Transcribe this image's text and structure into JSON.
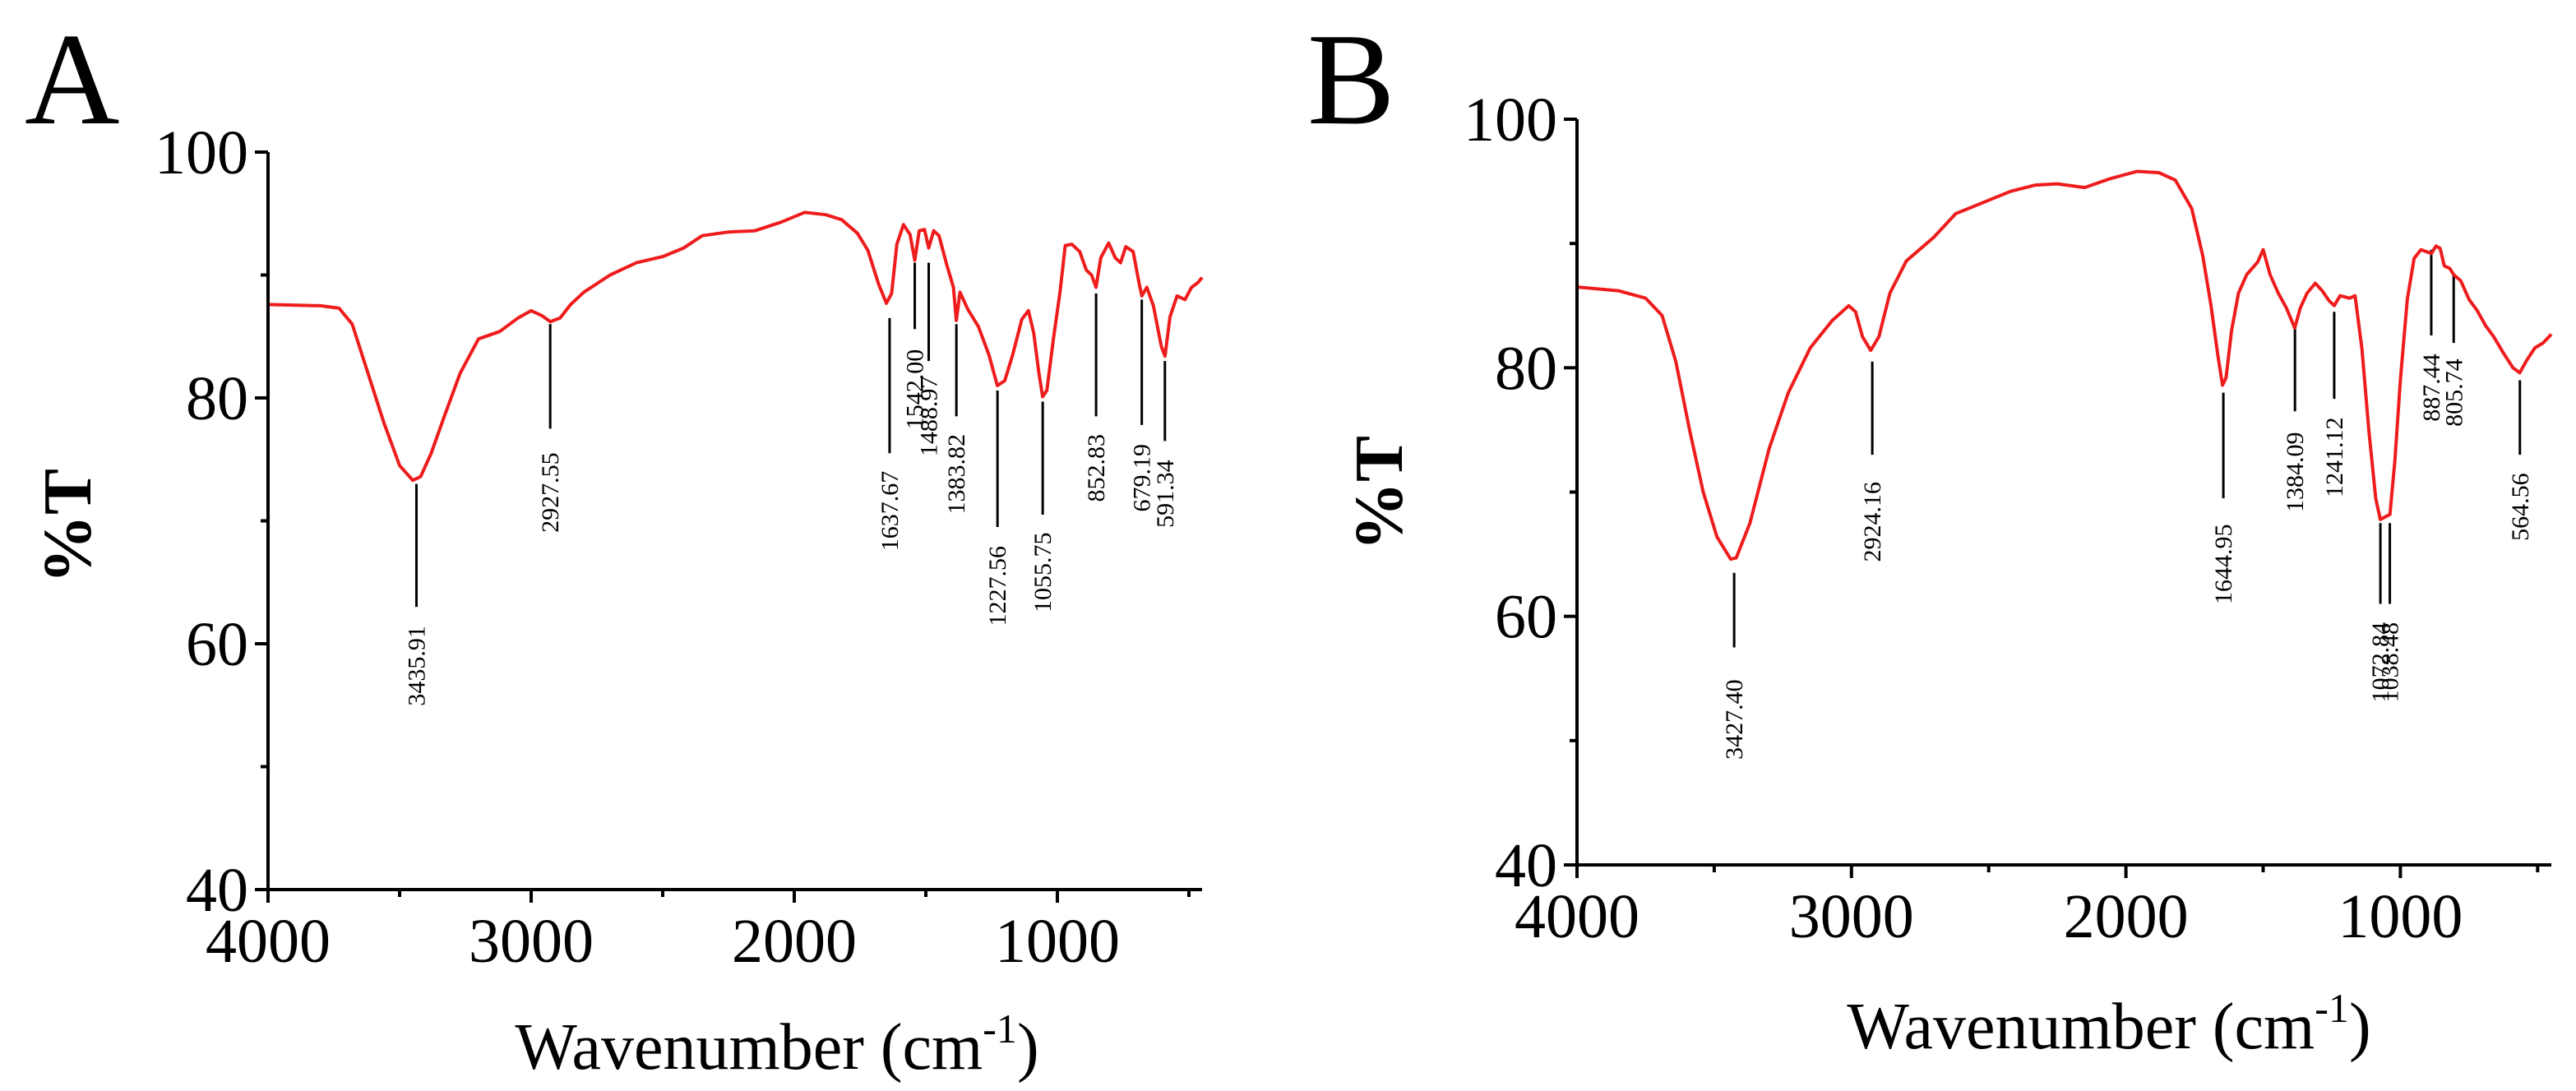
{
  "colors": {
    "spectrum": "#ee1c1c",
    "axis": "#000000"
  },
  "chart_data": [
    {
      "type": "line",
      "panel_letter": "A",
      "xlabel": "Wavenumber (cm",
      "xlabel_superscript": "-1",
      "xlabel_close": ")",
      "ylabel": "%T",
      "xlim": [
        4000,
        450
      ],
      "ylim": [
        40,
        100
      ],
      "x_ticks": [
        4000,
        3000,
        2000,
        1000
      ],
      "x_tick_labels": [
        "4000",
        "3000",
        "2000",
        "1000"
      ],
      "y_ticks": [
        40,
        60,
        80,
        100
      ],
      "y_tick_labels": [
        "40",
        "60",
        "80",
        "100"
      ],
      "series": [
        {
          "name": "A",
          "points": [
            [
              4000,
              87.6
            ],
            [
              3800,
              87.5
            ],
            [
              3730,
              87.3
            ],
            [
              3680,
              86.0
            ],
            [
              3620,
              82.0
            ],
            [
              3560,
              78.0
            ],
            [
              3500,
              74.5
            ],
            [
              3450,
              73.3
            ],
            [
              3420,
              73.6
            ],
            [
              3380,
              75.5
            ],
            [
              3330,
              78.5
            ],
            [
              3270,
              82.0
            ],
            [
              3200,
              84.8
            ],
            [
              3120,
              85.4
            ],
            [
              3050,
              86.5
            ],
            [
              3000,
              87.1
            ],
            [
              2960,
              86.7
            ],
            [
              2927,
              86.2
            ],
            [
              2890,
              86.5
            ],
            [
              2850,
              87.6
            ],
            [
              2800,
              88.6
            ],
            [
              2700,
              90.0
            ],
            [
              2600,
              91.0
            ],
            [
              2500,
              91.5
            ],
            [
              2420,
              92.2
            ],
            [
              2350,
              93.2
            ],
            [
              2250,
              93.5
            ],
            [
              2150,
              93.6
            ],
            [
              2050,
              94.3
            ],
            [
              1960,
              95.1
            ],
            [
              1880,
              94.9
            ],
            [
              1820,
              94.5
            ],
            [
              1760,
              93.4
            ],
            [
              1720,
              92.0
            ],
            [
              1680,
              89.3
            ],
            [
              1650,
              87.7
            ],
            [
              1630,
              88.5
            ],
            [
              1610,
              92.5
            ],
            [
              1585,
              94.1
            ],
            [
              1560,
              93.3
            ],
            [
              1542,
              91.2
            ],
            [
              1525,
              93.6
            ],
            [
              1505,
              93.7
            ],
            [
              1489,
              92.2
            ],
            [
              1470,
              93.6
            ],
            [
              1450,
              93.2
            ],
            [
              1420,
              90.8
            ],
            [
              1395,
              89.0
            ],
            [
              1384,
              86.3
            ],
            [
              1370,
              88.6
            ],
            [
              1340,
              87.2
            ],
            [
              1300,
              85.8
            ],
            [
              1260,
              83.5
            ],
            [
              1228,
              81.0
            ],
            [
              1200,
              81.4
            ],
            [
              1170,
              83.5
            ],
            [
              1135,
              86.4
            ],
            [
              1110,
              87.1
            ],
            [
              1090,
              85.3
            ],
            [
              1070,
              82.0
            ],
            [
              1056,
              80.1
            ],
            [
              1040,
              80.6
            ],
            [
              1015,
              84.8
            ],
            [
              990,
              88.6
            ],
            [
              970,
              92.4
            ],
            [
              945,
              92.5
            ],
            [
              915,
              91.9
            ],
            [
              890,
              90.4
            ],
            [
              870,
              90.0
            ],
            [
              853,
              89.0
            ],
            [
              835,
              91.4
            ],
            [
              805,
              92.6
            ],
            [
              780,
              91.4
            ],
            [
              760,
              91.0
            ],
            [
              740,
              92.3
            ],
            [
              712,
              91.9
            ],
            [
              690,
              89.4
            ],
            [
              679,
              88.3
            ],
            [
              660,
              89.0
            ],
            [
              635,
              87.5
            ],
            [
              605,
              84.2
            ],
            [
              591,
              83.4
            ],
            [
              572,
              86.6
            ],
            [
              545,
              88.3
            ],
            [
              515,
              88.0
            ],
            [
              490,
              89.0
            ],
            [
              465,
              89.4
            ],
            [
              450,
              89.8
            ]
          ]
        }
      ],
      "peaks": [
        {
          "x": 3435.91,
          "label": "3435.91",
          "y_top": 73,
          "y_bottom": 63,
          "label_y": 58.2
        },
        {
          "x": 2927.55,
          "label": "2927.55",
          "y_top": 86,
          "y_bottom": 77.5,
          "label_y": 72.3
        },
        {
          "x": 1637.67,
          "label": "1637.67",
          "y_top": 86.5,
          "y_bottom": 75.5,
          "label_y": 70.8
        },
        {
          "x": 1542.0,
          "label": "1542.00",
          "y_top": 91,
          "y_bottom": 85.6,
          "label_y": 80.7
        },
        {
          "x": 1488.97,
          "label": "1488.97",
          "y_top": 91,
          "y_bottom": 83,
          "label_y": 78.5
        },
        {
          "x": 1383.82,
          "label": "1383.82",
          "y_top": 86,
          "y_bottom": 78.5,
          "label_y": 73.8
        },
        {
          "x": 1227.56,
          "label": "1227.56",
          "y_top": 80.6,
          "y_bottom": 69.5,
          "label_y": 64.7
        },
        {
          "x": 1055.75,
          "label": "1055.75",
          "y_top": 79.7,
          "y_bottom": 70.5,
          "label_y": 65.8
        },
        {
          "x": 852.83,
          "label": "852.83",
          "y_top": 88.5,
          "y_bottom": 78.5,
          "label_y": 74.3
        },
        {
          "x": 679.19,
          "label": "679.19",
          "y_top": 88,
          "y_bottom": 77.8,
          "label_y": 73.5
        },
        {
          "x": 591.34,
          "label": "591.34",
          "y_top": 83,
          "y_bottom": 76.5,
          "label_y": 72.2
        }
      ]
    },
    {
      "type": "line",
      "panel_letter": "B",
      "xlabel": "Wavenumber (cm",
      "xlabel_superscript": "-1",
      "xlabel_close": ")",
      "ylabel": "%T",
      "xlim": [
        4000,
        450
      ],
      "ylim": [
        40,
        100
      ],
      "x_ticks": [
        4000,
        3000,
        2000,
        1000
      ],
      "x_tick_labels": [
        "4000",
        "3000",
        "2000",
        "1000"
      ],
      "y_ticks": [
        40,
        60,
        80,
        100
      ],
      "y_tick_labels": [
        "40",
        "60",
        "80",
        "100"
      ],
      "series": [
        {
          "name": "B",
          "points": [
            [
              4000,
              86.5
            ],
            [
              3850,
              86.2
            ],
            [
              3750,
              85.6
            ],
            [
              3690,
              84.2
            ],
            [
              3640,
              80.5
            ],
            [
              3590,
              75.0
            ],
            [
              3540,
              70.0
            ],
            [
              3490,
              66.4
            ],
            [
              3440,
              64.6
            ],
            [
              3420,
              64.7
            ],
            [
              3370,
              67.5
            ],
            [
              3300,
              73.5
            ],
            [
              3230,
              78.0
            ],
            [
              3150,
              81.6
            ],
            [
              3070,
              83.8
            ],
            [
              3010,
              85.0
            ],
            [
              2985,
              84.5
            ],
            [
              2960,
              82.5
            ],
            [
              2930,
              81.4
            ],
            [
              2900,
              82.5
            ],
            [
              2860,
              86.0
            ],
            [
              2800,
              88.6
            ],
            [
              2700,
              90.5
            ],
            [
              2620,
              92.4
            ],
            [
              2520,
              93.3
            ],
            [
              2420,
              94.2
            ],
            [
              2330,
              94.7
            ],
            [
              2250,
              94.8
            ],
            [
              2150,
              94.5
            ],
            [
              2060,
              95.2
            ],
            [
              1960,
              95.8
            ],
            [
              1880,
              95.7
            ],
            [
              1820,
              95.1
            ],
            [
              1760,
              92.8
            ],
            [
              1720,
              89.0
            ],
            [
              1690,
              85.0
            ],
            [
              1665,
              81.0
            ],
            [
              1648,
              78.6
            ],
            [
              1635,
              79.2
            ],
            [
              1615,
              83.0
            ],
            [
              1590,
              86.0
            ],
            [
              1560,
              87.5
            ],
            [
              1520,
              88.5
            ],
            [
              1500,
              89.5
            ],
            [
              1475,
              87.5
            ],
            [
              1445,
              86.0
            ],
            [
              1415,
              84.8
            ],
            [
              1385,
              83.2
            ],
            [
              1365,
              84.8
            ],
            [
              1340,
              86.0
            ],
            [
              1310,
              86.8
            ],
            [
              1285,
              86.2
            ],
            [
              1260,
              85.4
            ],
            [
              1241,
              85.0
            ],
            [
              1220,
              85.8
            ],
            [
              1185,
              85.6
            ],
            [
              1165,
              85.8
            ],
            [
              1140,
              81.5
            ],
            [
              1115,
              75.0
            ],
            [
              1090,
              69.5
            ],
            [
              1073,
              67.8
            ],
            [
              1055,
              68.0
            ],
            [
              1038,
              68.2
            ],
            [
              1020,
              72.5
            ],
            [
              1000,
              79.0
            ],
            [
              975,
              85.5
            ],
            [
              950,
              88.8
            ],
            [
              925,
              89.5
            ],
            [
              900,
              89.3
            ],
            [
              887,
              89.2
            ],
            [
              870,
              89.8
            ],
            [
              855,
              89.6
            ],
            [
              840,
              88.2
            ],
            [
              820,
              88.0
            ],
            [
              806,
              87.5
            ],
            [
              780,
              87.0
            ],
            [
              750,
              85.5
            ],
            [
              720,
              84.6
            ],
            [
              690,
              83.4
            ],
            [
              660,
              82.5
            ],
            [
              625,
              81.2
            ],
            [
              590,
              80.0
            ],
            [
              565,
              79.6
            ],
            [
              540,
              80.6
            ],
            [
              510,
              81.6
            ],
            [
              480,
              82.0
            ],
            [
              450,
              82.7
            ]
          ]
        }
      ],
      "peaks": [
        {
          "x": 3427.4,
          "label": "3427.40",
          "y_top": 63.5,
          "y_bottom": 57.5,
          "label_y": 51.7
        },
        {
          "x": 2924.16,
          "label": "2924.16",
          "y_top": 80.5,
          "y_bottom": 73,
          "label_y": 67.6
        },
        {
          "x": 1644.95,
          "label": "1644.95",
          "y_top": 78,
          "y_bottom": 69.5,
          "label_y": 64.2
        },
        {
          "x": 1384.09,
          "label": "1384.09",
          "y_top": 83.5,
          "y_bottom": 76.5,
          "label_y": 71.6
        },
        {
          "x": 1241.12,
          "label": "1241.12",
          "y_top": 84.5,
          "y_bottom": 77.5,
          "label_y": 72.8
        },
        {
          "x": 1072.84,
          "label": "1072.84",
          "y_top": 67.5,
          "y_bottom": 61,
          "label_y": 56.3
        },
        {
          "x": 1038.48,
          "label": "1038.48",
          "y_top": 67.5,
          "y_bottom": 61,
          "label_y": 56.3
        },
        {
          "x": 887.44,
          "label": "887.44",
          "y_top": 89.5,
          "y_bottom": 82.6,
          "label_y": 78.4
        },
        {
          "x": 805.74,
          "label": "805.74",
          "y_top": 87.5,
          "y_bottom": 82,
          "label_y": 78.0
        },
        {
          "x": 564.56,
          "label": "564.56",
          "y_top": 79,
          "y_bottom": 73,
          "label_y": 68.8
        }
      ]
    }
  ]
}
